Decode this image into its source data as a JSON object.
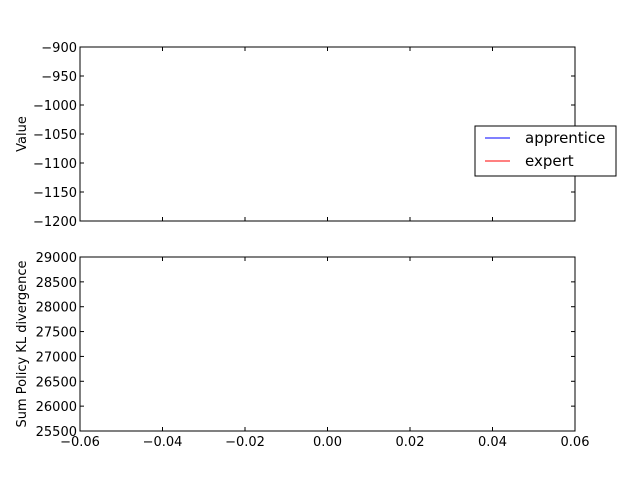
{
  "chart_data": [
    {
      "type": "line",
      "ylabel": "Value",
      "xlim": [
        -0.06,
        0.06
      ],
      "ylim": [
        -1200,
        -900
      ],
      "yticks": [
        -900,
        -950,
        -1000,
        -1050,
        -1100,
        -1150,
        -1200
      ],
      "ytick_labels": [
        "−900",
        "−950",
        "−1000",
        "−1050",
        "−1100",
        "−1150",
        "−1200"
      ],
      "series": [
        {
          "name": "apprentice",
          "color": "#0000ff",
          "x": [],
          "y": []
        },
        {
          "name": "expert",
          "color": "#ff0000",
          "x": [],
          "y": []
        }
      ],
      "legend": {
        "placement": "right",
        "entries": [
          "apprentice",
          "expert"
        ]
      },
      "grid": false
    },
    {
      "type": "line",
      "ylabel": "Sum Policy KL divergence",
      "xlim": [
        -0.06,
        0.06
      ],
      "ylim": [
        25500,
        29000
      ],
      "yticks": [
        29000,
        28500,
        28000,
        27500,
        27000,
        26500,
        26000,
        25500
      ],
      "ytick_labels": [
        "29000",
        "28500",
        "28000",
        "27500",
        "27000",
        "26500",
        "26000",
        "25500"
      ],
      "xticks": [
        -0.06,
        -0.04,
        -0.02,
        0.0,
        0.02,
        0.04,
        0.06
      ],
      "xtick_labels": [
        "−0.06",
        "−0.04",
        "−0.02",
        "0.00",
        "0.02",
        "0.04",
        "0.06"
      ],
      "series": [],
      "grid": false
    }
  ]
}
